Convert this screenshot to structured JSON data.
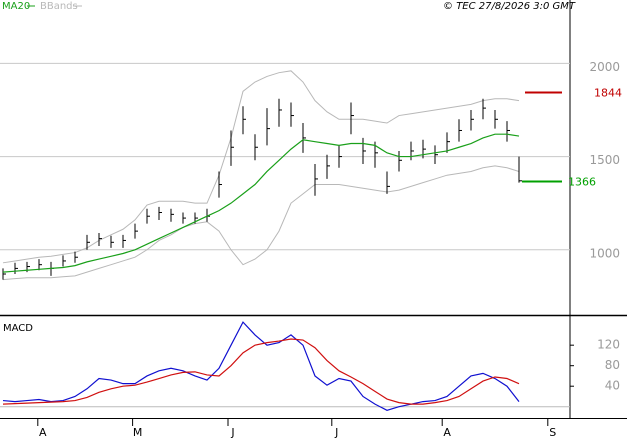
{
  "chart_data": [
    {
      "type": "ohlc",
      "title": "© TEC 27/8/2026 3:0 GMT",
      "bar_color": "#000000",
      "high": [
        900,
        930,
        935,
        950,
        935,
        970,
        990,
        1080,
        1090,
        1075,
        1080,
        1140,
        1220,
        1230,
        1220,
        1200,
        1200,
        1220,
        1420,
        1640,
        1770,
        1620,
        1760,
        1810,
        1790,
        1680,
        1460,
        1510,
        1560,
        1790,
        1600,
        1580,
        1420,
        1530,
        1580,
        1590,
        1560,
        1630,
        1700,
        1750,
        1810,
        1750,
        1690,
        1500
      ],
      "low": [
        840,
        870,
        880,
        890,
        860,
        910,
        930,
        1000,
        1020,
        1010,
        1010,
        1060,
        1140,
        1160,
        1150,
        1140,
        1140,
        1150,
        1280,
        1450,
        1620,
        1480,
        1560,
        1660,
        1660,
        1520,
        1290,
        1380,
        1440,
        1620,
        1460,
        1440,
        1300,
        1420,
        1480,
        1490,
        1460,
        1520,
        1580,
        1640,
        1700,
        1650,
        1580,
        1360
      ],
      "close": [
        870,
        900,
        910,
        920,
        900,
        940,
        960,
        1040,
        1060,
        1040,
        1050,
        1100,
        1180,
        1200,
        1190,
        1170,
        1170,
        1180,
        1350,
        1550,
        1700,
        1550,
        1650,
        1750,
        1720,
        1600,
        1380,
        1450,
        1500,
        1720,
        1530,
        1520,
        1340,
        1480,
        1530,
        1540,
        1510,
        1580,
        1640,
        1700,
        1760,
        1700,
        1640,
        1370
      ],
      "series": [
        {
          "name": "MA20",
          "color": "#1aa01a",
          "values": [
            880,
            885,
            890,
            895,
            900,
            905,
            915,
            935,
            950,
            965,
            980,
            1000,
            1030,
            1060,
            1090,
            1120,
            1150,
            1180,
            1210,
            1250,
            1300,
            1350,
            1420,
            1480,
            1540,
            1590,
            1580,
            1570,
            1560,
            1570,
            1570,
            1560,
            1520,
            1500,
            1500,
            1510,
            1520,
            1530,
            1550,
            1570,
            1600,
            1620,
            1620,
            1610
          ]
        },
        {
          "name": "BBands",
          "color": "#b8b8b8",
          "upper": [
            930,
            940,
            950,
            960,
            965,
            975,
            985,
            1010,
            1050,
            1080,
            1110,
            1160,
            1240,
            1260,
            1260,
            1260,
            1250,
            1250,
            1400,
            1600,
            1850,
            1900,
            1930,
            1950,
            1960,
            1900,
            1800,
            1740,
            1700,
            1700,
            1700,
            1690,
            1680,
            1720,
            1730,
            1740,
            1750,
            1760,
            1770,
            1780,
            1800,
            1810,
            1810,
            1800
          ],
          "lower": [
            840,
            845,
            850,
            850,
            850,
            855,
            860,
            880,
            900,
            920,
            940,
            960,
            1000,
            1050,
            1080,
            1120,
            1140,
            1150,
            1100,
            1000,
            920,
            950,
            1000,
            1100,
            1250,
            1300,
            1350,
            1350,
            1350,
            1340,
            1330,
            1320,
            1310,
            1320,
            1340,
            1360,
            1380,
            1400,
            1410,
            1420,
            1440,
            1450,
            1440,
            1420
          ]
        }
      ],
      "ylim": [
        650,
        2340
      ],
      "yticks": [
        1000,
        1500,
        2000
      ],
      "grid": true,
      "xlim": [
        -0.25,
        47.25
      ],
      "xticks": [
        {
          "value": 2.9,
          "label": "A"
        },
        {
          "value": 10.8,
          "label": "M"
        },
        {
          "value": 18.75,
          "label": "J"
        },
        {
          "value": 27.4,
          "label": "J"
        },
        {
          "value": 36.6,
          "label": "A"
        },
        {
          "value": 45.4,
          "label": "S"
        }
      ],
      "annotations": [
        {
          "value": 1844,
          "color": "#c00000"
        },
        {
          "value": 1366,
          "color": "#00a000"
        }
      ]
    },
    {
      "type": "line",
      "title": "MACD",
      "series": [
        {
          "color": "#1010d0",
          "values": [
            12,
            10,
            12,
            14,
            10,
            12,
            20,
            35,
            55,
            52,
            45,
            45,
            60,
            70,
            75,
            70,
            60,
            52,
            75,
            120,
            165,
            140,
            120,
            125,
            140,
            120,
            60,
            42,
            55,
            50,
            20,
            5,
            -7,
            0,
            5,
            10,
            12,
            20,
            40,
            60,
            65,
            55,
            40,
            10
          ]
        },
        {
          "color": "#d01010",
          "values": [
            5,
            6,
            7,
            8,
            9,
            10,
            12,
            18,
            28,
            35,
            40,
            42,
            48,
            55,
            62,
            67,
            68,
            62,
            60,
            80,
            105,
            120,
            125,
            128,
            132,
            130,
            115,
            90,
            70,
            58,
            45,
            30,
            15,
            8,
            5,
            5,
            8,
            12,
            20,
            35,
            50,
            58,
            55,
            45
          ]
        }
      ],
      "ylim": [
        -22,
        173
      ],
      "yticks": [
        40,
        80,
        120
      ]
    }
  ]
}
